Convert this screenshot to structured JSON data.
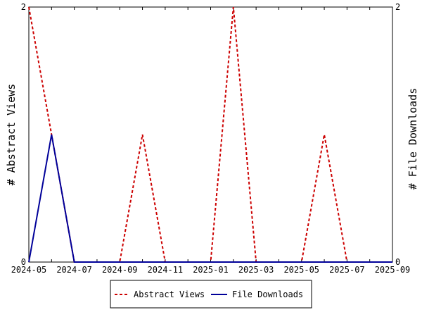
{
  "chart_data": {
    "type": "line",
    "x_ticks": [
      "2024-05",
      "2024-07",
      "2024-09",
      "2024-11",
      "2025-01",
      "2025-03",
      "2025-05",
      "2025-07",
      "2025-09"
    ],
    "x": [
      "2024-05",
      "2024-06",
      "2024-07",
      "2024-08",
      "2024-09",
      "2024-10",
      "2024-11",
      "2024-12",
      "2025-01",
      "2025-02",
      "2025-03",
      "2025-04",
      "2025-05",
      "2025-06",
      "2025-07",
      "2025-08",
      "2025-09"
    ],
    "series": [
      {
        "name": "Abstract Views",
        "color": "#cc0000",
        "style": "dashed",
        "axis": "left",
        "values": [
          2,
          1,
          0,
          0,
          0,
          1,
          0,
          0,
          0,
          2,
          0,
          0,
          0,
          1,
          0,
          0,
          0
        ]
      },
      {
        "name": "File Downloads",
        "color": "#000099",
        "style": "solid",
        "axis": "right",
        "values": [
          0,
          1,
          0,
          0,
          0,
          0,
          0,
          0,
          0,
          0,
          0,
          0,
          0,
          0,
          0,
          0,
          0
        ]
      }
    ],
    "ylabel_left": "# Abstract Views",
    "ylabel_right": "# File Downloads",
    "ylim": [
      0,
      2
    ],
    "y_ticks": [
      "0",
      "2"
    ],
    "grid": false,
    "legend_position": "bottom"
  }
}
